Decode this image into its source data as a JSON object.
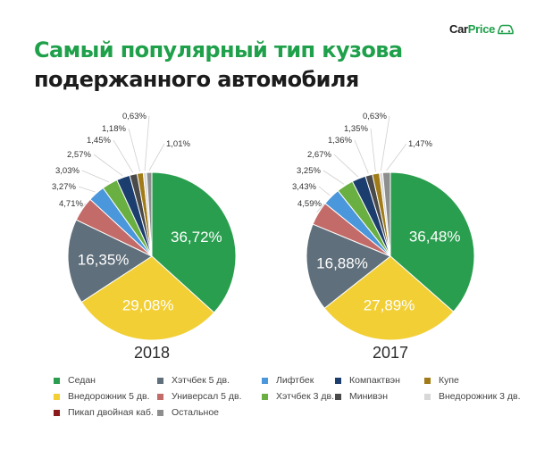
{
  "header": {
    "title_line1": "Самый популярный тип кузова",
    "title_line2": "подержанного автомобиля",
    "logo_part1": "Car",
    "logo_part2": "Price"
  },
  "chart_data": [
    {
      "type": "pie",
      "title": "2018",
      "categories": [
        "Седан",
        "Внедорожник 5 дв.",
        "Хэтчбек 5 дв.",
        "Универсал 5 дв.",
        "Лифтбек",
        "Хэтчбек 3 дв.",
        "Компактвэн",
        "Минивэн",
        "Купе",
        "Внедорожник 3 дв.",
        "Пикап двойная каб.",
        "Остальное"
      ],
      "values": [
        36.72,
        29.08,
        16.35,
        4.71,
        3.27,
        3.03,
        2.57,
        1.45,
        1.18,
        0.63,
        0.0,
        1.01
      ],
      "labels": [
        "36,72%",
        "29,08%",
        "16,35%",
        "4,71%",
        "3,27%",
        "3,03%",
        "2,57%",
        "1,45%",
        "1,18%",
        "0,63%",
        "",
        "1,01%"
      ]
    },
    {
      "type": "pie",
      "title": "2017",
      "categories": [
        "Седан",
        "Внедорожник 5 дв.",
        "Хэтчбек 5 дв.",
        "Универсал 5 дв.",
        "Лифтбек",
        "Хэтчбек 3 дв.",
        "Компактвэн",
        "Минивэн",
        "Купе",
        "Внедорожник 3 дв.",
        "Пикап двойная каб.",
        "Остальное"
      ],
      "values": [
        36.48,
        27.89,
        16.88,
        4.59,
        3.43,
        3.25,
        2.67,
        1.36,
        1.35,
        0.63,
        0.0,
        1.47
      ],
      "labels": [
        "36,48%",
        "27,89%",
        "16,88%",
        "4,59%",
        "3,43%",
        "3,25%",
        "2,67%",
        "1,36%",
        "1,35%",
        "0,63%",
        "",
        "1,47%"
      ]
    }
  ],
  "colors": [
    "#2a9e4f",
    "#f2cf35",
    "#5f6f7b",
    "#c36b68",
    "#4a97db",
    "#6aaf42",
    "#1c3e6e",
    "#4a4a4a",
    "#a07b17",
    "#d8d8d8",
    "#8b1a1a",
    "#8e8e8e"
  ],
  "legend": [
    {
      "label": "Седан",
      "color": "#2a9e4f"
    },
    {
      "label": "Хэтчбек 5 дв.",
      "color": "#5f6f7b"
    },
    {
      "label": "Лифтбек",
      "color": "#4a97db"
    },
    {
      "label": "Компактвэн",
      "color": "#1c3e6e"
    },
    {
      "label": "Купе",
      "color": "#a07b17"
    },
    {
      "label": "Внедорожник 5 дв.",
      "color": "#f2cf35"
    },
    {
      "label": "Универсал 5 дв.",
      "color": "#c36b68"
    },
    {
      "label": "Хэтчбек 3 дв.",
      "color": "#6aaf42"
    },
    {
      "label": "Минивэн",
      "color": "#4a4a4a"
    },
    {
      "label": "Внедорожник 3 дв.",
      "color": "#d8d8d8"
    },
    {
      "label": "Пикап двойная каб.",
      "color": "#8b1a1a"
    },
    {
      "label": "Остальное",
      "color": "#8e8e8e"
    }
  ]
}
